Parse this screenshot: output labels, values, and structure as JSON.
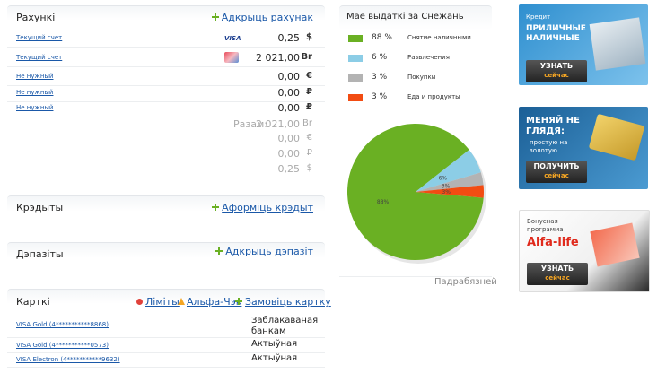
{
  "accounts": {
    "title": "Рахункі",
    "action": "Адкрыць рахунак",
    "rows": [
      {
        "name": "Текущий счет",
        "icon": "VISA",
        "amount": "0,25",
        "currency": "$"
      },
      {
        "name": "Текущий счет",
        "amount": "2 021,00",
        "currency": "Br"
      },
      {
        "name": "Не нужный",
        "amount": "0,00",
        "currency": "€"
      },
      {
        "name": "Не нужный",
        "amount": "0,00",
        "currency": "₽"
      },
      {
        "name": "Не нужный",
        "amount": "0,00",
        "currency": "₽"
      }
    ],
    "total_label": "Разам:",
    "totals": [
      {
        "amount": "2 021,00",
        "currency": "Br"
      },
      {
        "amount": "0,00",
        "currency": "€"
      },
      {
        "amount": "0,00",
        "currency": "₽"
      },
      {
        "amount": "0,25",
        "currency": "$"
      }
    ]
  },
  "credits": {
    "title": "Крэдыты",
    "action": "Аформіць крэдыт"
  },
  "deposits": {
    "title": "Дэпазіты",
    "action": "Адкрыць дэпазіт"
  },
  "cards": {
    "title": "Карткі",
    "actions": [
      "Ліміты",
      "Альфа-Чэк",
      "Замовіць картку"
    ],
    "rows": [
      {
        "name": "VISA Gold (4***********8868)",
        "status": "Заблакаваная банкам"
      },
      {
        "name": "VISA Gold (4***********0573)",
        "status": "Актыўная"
      },
      {
        "name": "VISA Electron (4***********9632)",
        "status": "Актыўная"
      }
    ]
  },
  "spending": {
    "title": "Мае выдаткі за Снежань",
    "items": [
      {
        "label": "Снятие наличными",
        "value": 88,
        "value_label": "88 %",
        "slice_label": "88%",
        "color": "#6ab023"
      },
      {
        "label": "Развлечения",
        "value": 6,
        "value_label": "6 %",
        "slice_label": "6%",
        "color": "#8ccde6"
      },
      {
        "label": "Покупки",
        "value": 3,
        "value_label": "3 %",
        "slice_label": "3%",
        "color": "#b3b3b3"
      },
      {
        "label": "Еда и продукты",
        "value": 3,
        "value_label": "3 %",
        "slice_label": "3%",
        "color": "#f24c12"
      }
    ],
    "more": "Падрабязней"
  },
  "banners": [
    {
      "kicker": "Кредит",
      "headline": "ПРИЛИЧНЫЕ НАЛИЧНЫЕ",
      "button": "УЗНАТЬ",
      "button_sub": "сейчас"
    },
    {
      "headline": "МЕНЯЙ НЕ ГЛЯДЯ:",
      "text": "простую на золотую",
      "button": "ПОЛУЧИТЬ",
      "button_sub": "сейчас"
    },
    {
      "kicker": "Бонусная программа",
      "headline": "Alfa-life",
      "button": "УЗНАТЬ",
      "button_sub": "сейчас"
    }
  ]
}
